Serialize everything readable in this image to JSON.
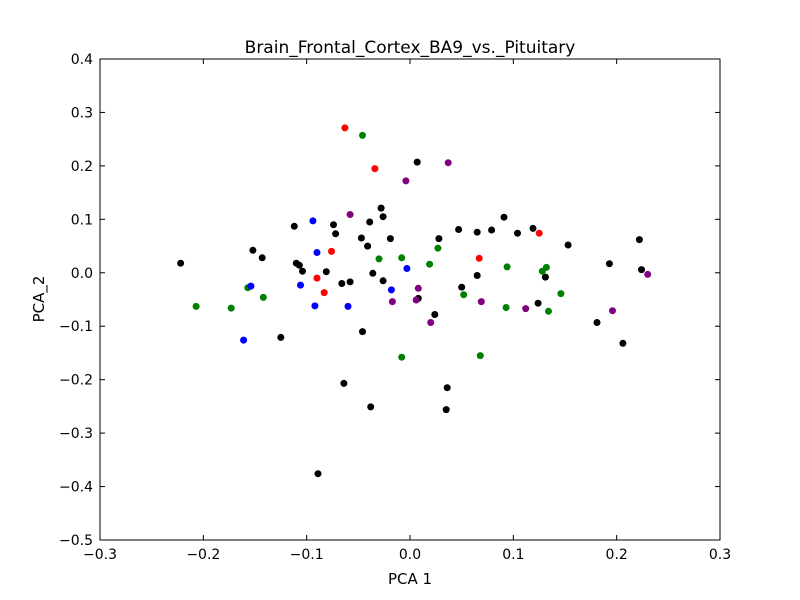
{
  "chart_data": {
    "type": "scatter",
    "title": "Brain_Frontal_Cortex_BA9_vs._Pituitary",
    "xlabel": "PCA 1",
    "ylabel": "PCA_2",
    "xlim": [
      -0.3,
      0.3
    ],
    "ylim": [
      -0.5,
      0.4
    ],
    "xticks": [
      "−0.3",
      "−0.2",
      "−0.1",
      "0.0",
      "0.1",
      "0.2",
      "0.3"
    ],
    "yticks": [
      "−0.5",
      "−0.4",
      "−0.3",
      "−0.2",
      "−0.1",
      "0.0",
      "0.1",
      "0.2",
      "0.3",
      "0.4"
    ],
    "grid": false,
    "legend": "none",
    "series": [
      {
        "color": "#000000",
        "points": [
          [
            -0.222,
            0.018
          ],
          [
            -0.152,
            0.042
          ],
          [
            -0.143,
            0.028
          ],
          [
            -0.125,
            -0.121
          ],
          [
            -0.112,
            0.087
          ],
          [
            -0.11,
            0.018
          ],
          [
            -0.107,
            0.014
          ],
          [
            -0.104,
            0.003
          ],
          [
            -0.089,
            -0.376
          ],
          [
            -0.081,
            0.002
          ],
          [
            -0.074,
            0.09
          ],
          [
            -0.072,
            0.073
          ],
          [
            -0.066,
            -0.02
          ],
          [
            -0.064,
            -0.207
          ],
          [
            -0.058,
            -0.017
          ],
          [
            -0.047,
            0.065
          ],
          [
            -0.046,
            -0.11
          ],
          [
            -0.041,
            0.05
          ],
          [
            -0.039,
            0.095
          ],
          [
            -0.038,
            -0.251
          ],
          [
            -0.036,
            -0.001
          ],
          [
            -0.028,
            0.121
          ],
          [
            -0.026,
            0.105
          ],
          [
            -0.026,
            -0.015
          ],
          [
            -0.019,
            0.064
          ],
          [
            0.007,
            0.207
          ],
          [
            0.008,
            -0.048
          ],
          [
            0.024,
            -0.078
          ],
          [
            0.028,
            0.064
          ],
          [
            0.035,
            -0.256
          ],
          [
            0.036,
            -0.215
          ],
          [
            0.047,
            0.081
          ],
          [
            0.05,
            -0.027
          ],
          [
            0.065,
            0.076
          ],
          [
            0.065,
            -0.005
          ],
          [
            0.079,
            0.08
          ],
          [
            0.091,
            0.104
          ],
          [
            0.104,
            0.074
          ],
          [
            0.119,
            0.083
          ],
          [
            0.124,
            -0.057
          ],
          [
            0.131,
            -0.008
          ],
          [
            0.153,
            0.052
          ],
          [
            0.181,
            -0.093
          ],
          [
            0.193,
            0.017
          ],
          [
            0.206,
            -0.132
          ],
          [
            0.222,
            0.062
          ],
          [
            0.224,
            0.006
          ]
        ]
      },
      {
        "color": "#008000",
        "points": [
          [
            -0.207,
            -0.063
          ],
          [
            -0.173,
            -0.066
          ],
          [
            -0.157,
            -0.028
          ],
          [
            -0.142,
            -0.046
          ],
          [
            -0.046,
            0.257
          ],
          [
            -0.03,
            0.026
          ],
          [
            -0.008,
            0.028
          ],
          [
            -0.008,
            -0.158
          ],
          [
            0.019,
            0.016
          ],
          [
            0.027,
            0.046
          ],
          [
            0.052,
            -0.041
          ],
          [
            0.068,
            -0.155
          ],
          [
            0.093,
            -0.065
          ],
          [
            0.094,
            0.011
          ],
          [
            0.128,
            0.003
          ],
          [
            0.132,
            0.01
          ],
          [
            0.134,
            -0.072
          ],
          [
            0.146,
            -0.039
          ]
        ]
      },
      {
        "color": "#0000ff",
        "points": [
          [
            -0.161,
            -0.126
          ],
          [
            -0.154,
            -0.025
          ],
          [
            -0.106,
            -0.023
          ],
          [
            -0.094,
            0.097
          ],
          [
            -0.092,
            -0.062
          ],
          [
            -0.09,
            0.038
          ],
          [
            -0.06,
            -0.063
          ],
          [
            -0.018,
            -0.032
          ],
          [
            -0.003,
            0.008
          ]
        ]
      },
      {
        "color": "#ff0000",
        "points": [
          [
            -0.063,
            0.271
          ],
          [
            -0.034,
            0.195
          ],
          [
            -0.076,
            0.04
          ],
          [
            -0.09,
            -0.01
          ],
          [
            -0.083,
            -0.037
          ],
          [
            0.067,
            0.027
          ],
          [
            0.125,
            0.074
          ]
        ]
      },
      {
        "color": "#800080",
        "points": [
          [
            0.037,
            0.206
          ],
          [
            -0.004,
            0.172
          ],
          [
            -0.058,
            0.109
          ],
          [
            -0.017,
            -0.054
          ],
          [
            0.006,
            -0.051
          ],
          [
            0.008,
            -0.029
          ],
          [
            0.02,
            -0.093
          ],
          [
            0.069,
            -0.054
          ],
          [
            0.112,
            -0.067
          ],
          [
            0.196,
            -0.071
          ],
          [
            0.23,
            -0.003
          ]
        ]
      }
    ]
  }
}
